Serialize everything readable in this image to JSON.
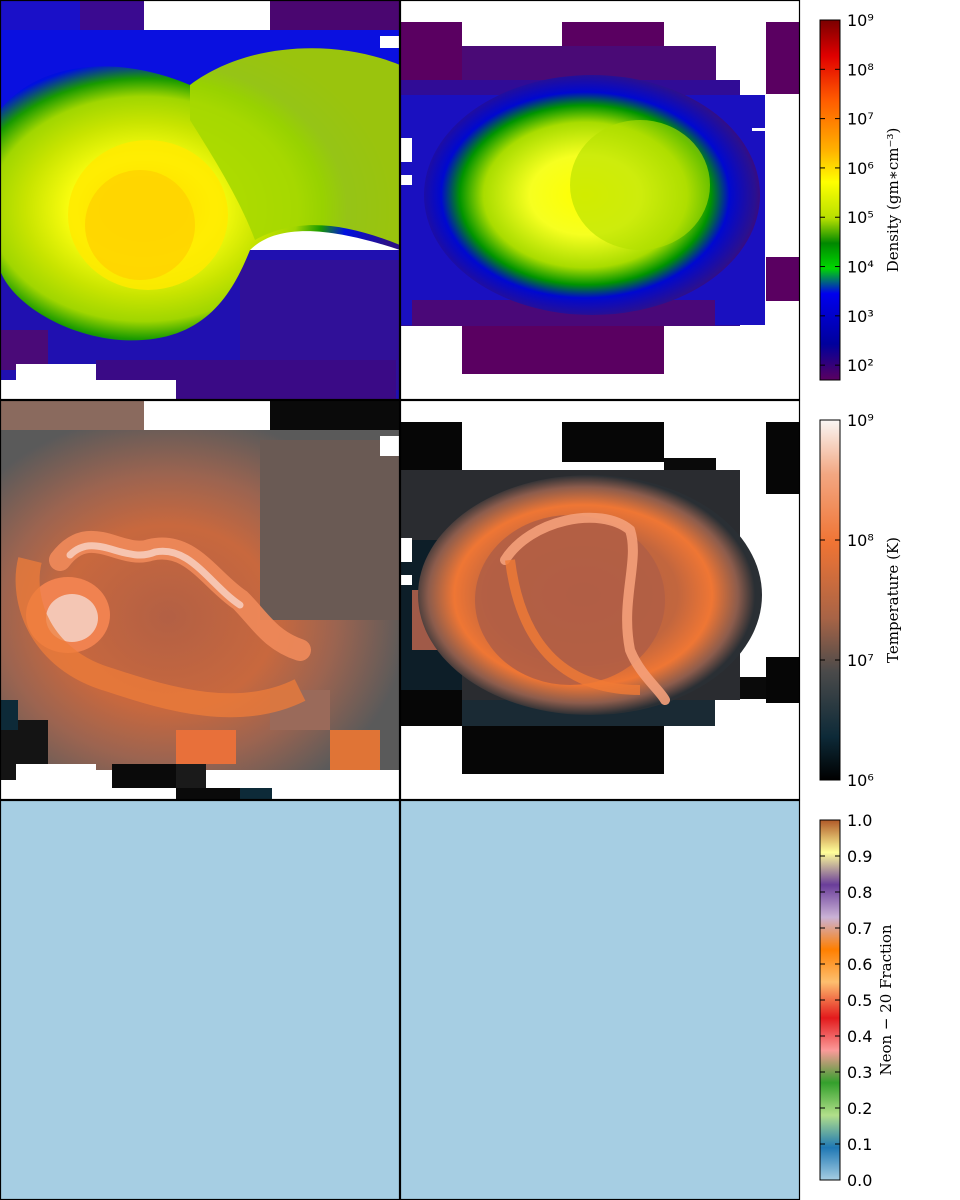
{
  "chart_data": [
    {
      "type": "heatmap",
      "field": "density",
      "panels": [
        "left",
        "right"
      ],
      "colorbar": {
        "label": "Density (gm∗cm⁻³)",
        "scale": "log",
        "range": [
          50,
          1000000000
        ],
        "ticks": [
          "10⁹",
          "10⁸",
          "10⁷",
          "10⁶",
          "10⁵",
          "10⁴",
          "10³",
          "10²"
        ],
        "colors": [
          "#5a0061",
          "#00009c",
          "#0000ee",
          "#00d800",
          "#008800",
          "#b8e000",
          "#ffff00",
          "#ffb000",
          "#ff5a00",
          "#e00000",
          "#7a0000"
        ]
      }
    },
    {
      "type": "heatmap",
      "field": "temperature",
      "panels": [
        "left",
        "right"
      ],
      "colorbar": {
        "label": "Temperature (K)",
        "scale": "log",
        "range": [
          1000000,
          1000000000
        ],
        "ticks": [
          "10⁹",
          "10⁸",
          "10⁷",
          "10⁶"
        ],
        "colors": [
          "#000000",
          "#0d2a38",
          "#4a4a4a",
          "#a86446",
          "#f07434",
          "#f2a782",
          "#faf6f4"
        ]
      }
    },
    {
      "type": "heatmap",
      "field": "neon-20 fraction",
      "panels": [
        "left",
        "right"
      ],
      "uniform_value": 0.0,
      "colorbar": {
        "label": "Neon − 20 Fraction",
        "scale": "linear",
        "range": [
          0.0,
          1.0
        ],
        "ticks": [
          "1.0",
          "0.9",
          "0.8",
          "0.7",
          "0.6",
          "0.5",
          "0.4",
          "0.3",
          "0.2",
          "0.1",
          "0.0"
        ],
        "colors": [
          "#a6cee3",
          "#1f78b4",
          "#b2df8a",
          "#33a02c",
          "#fb9a99",
          "#e31a1c",
          "#fdbf6f",
          "#ff7f00",
          "#cab2d6",
          "#6a3d9a",
          "#ffff99",
          "#b15928"
        ]
      }
    }
  ]
}
